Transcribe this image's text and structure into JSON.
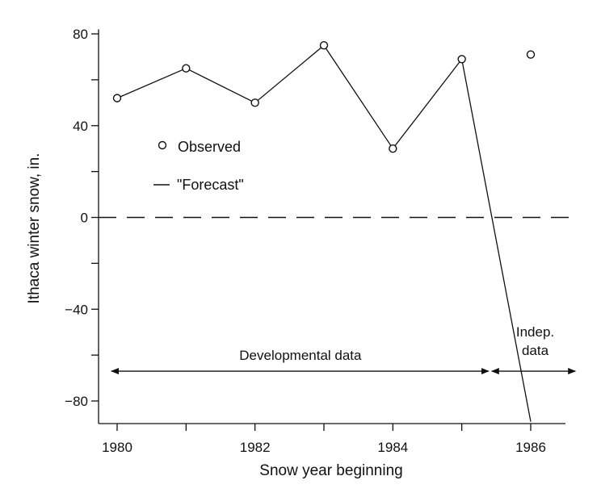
{
  "chart_data": {
    "type": "line",
    "xlabel": "Snow year beginning",
    "ylabel": "Ithaca winter snow, in.",
    "xlim": [
      1980,
      1986.5
    ],
    "ylim": [
      -90,
      82
    ],
    "x_ticks": [
      1980,
      1981,
      1982,
      1983,
      1984,
      1985,
      1986
    ],
    "x_tick_labels": [
      "1980",
      "",
      "1982",
      "",
      "1984",
      "",
      "1986"
    ],
    "y_ticks": [
      -80,
      -60,
      -40,
      -20,
      0,
      20,
      40,
      60,
      80
    ],
    "y_tick_labels": [
      "−80",
      "",
      "−40",
      "",
      "0",
      "",
      "40",
      "",
      "80"
    ],
    "grid": false,
    "series": [
      {
        "name": "Observed",
        "style": "open-circle-markers",
        "x": [
          1980,
          1981,
          1982,
          1983,
          1984,
          1985,
          1986
        ],
        "y": [
          52,
          65,
          50,
          75,
          30,
          69,
          71
        ]
      },
      {
        "name": "\"Forecast\"",
        "style": "solid-line",
        "x": [
          1980,
          1981,
          1982,
          1983,
          1984,
          1985,
          1986
        ],
        "y": [
          52,
          65,
          50,
          75,
          30,
          69,
          -89
        ]
      }
    ],
    "reference_line": {
      "y": 0,
      "style": "dashed"
    },
    "legend_position": "upper-left",
    "annotations": {
      "developmental": {
        "label": "Developmental data",
        "x_from": 1980,
        "x_to": 1985.4,
        "y": -67
      },
      "independent": {
        "label_line1": "Indep.",
        "label_line2": "data",
        "x_from": 1985.4,
        "x_to": 1986.6,
        "y": -67
      }
    },
    "colors": {
      "ink": "#111111",
      "background": "#ffffff"
    }
  }
}
